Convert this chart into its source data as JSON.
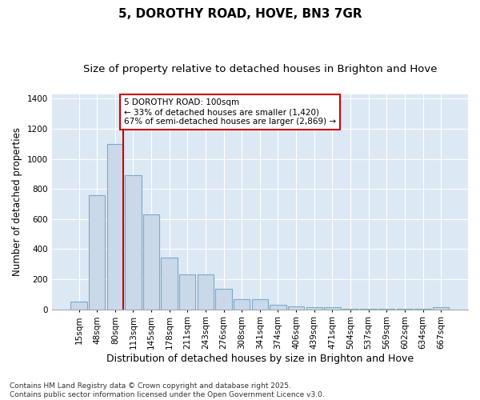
{
  "title": "5, DOROTHY ROAD, HOVE, BN3 7GR",
  "subtitle": "Size of property relative to detached houses in Brighton and Hove",
  "xlabel": "Distribution of detached houses by size in Brighton and Hove",
  "ylabel": "Number of detached properties",
  "categories": [
    "15sqm",
    "48sqm",
    "80sqm",
    "113sqm",
    "145sqm",
    "178sqm",
    "211sqm",
    "243sqm",
    "276sqm",
    "308sqm",
    "341sqm",
    "374sqm",
    "406sqm",
    "439sqm",
    "471sqm",
    "504sqm",
    "537sqm",
    "569sqm",
    "602sqm",
    "634sqm",
    "667sqm"
  ],
  "values": [
    50,
    760,
    1100,
    890,
    630,
    345,
    230,
    230,
    135,
    70,
    70,
    30,
    20,
    12,
    12,
    5,
    5,
    2,
    2,
    2,
    15
  ],
  "bar_color": "#c9d9ea",
  "bar_edge_color": "#7aaac8",
  "vline_color": "#cc0000",
  "annotation_text": "5 DOROTHY ROAD: 100sqm\n← 33% of detached houses are smaller (1,420)\n67% of semi-detached houses are larger (2,869) →",
  "annotation_box_facecolor": "#ffffff",
  "annotation_box_edgecolor": "#cc0000",
  "ylim": [
    0,
    1430
  ],
  "yticks": [
    0,
    200,
    400,
    600,
    800,
    1000,
    1200,
    1400
  ],
  "fig_facecolor": "#ffffff",
  "ax_facecolor": "#dde8f5",
  "grid_color": "#ffffff",
  "footer": "Contains HM Land Registry data © Crown copyright and database right 2025.\nContains public sector information licensed under the Open Government Licence v3.0.",
  "title_fontsize": 11,
  "subtitle_fontsize": 9.5,
  "tick_fontsize": 7.5,
  "ylabel_fontsize": 8.5,
  "xlabel_fontsize": 9,
  "annotation_fontsize": 7.5,
  "footer_fontsize": 6.5
}
